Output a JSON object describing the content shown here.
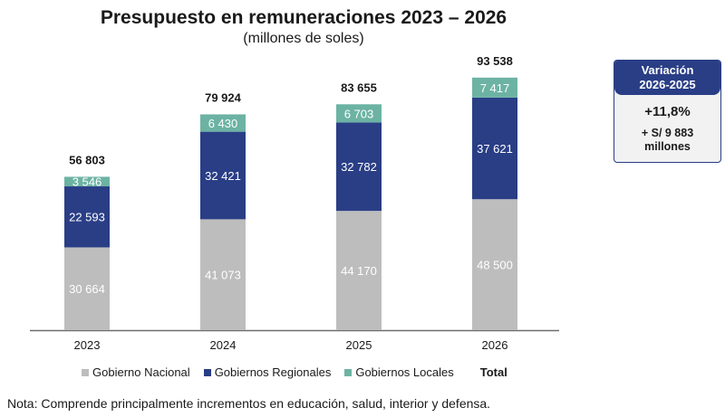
{
  "chart_data": {
    "type": "bar",
    "stacked": true,
    "title": "Presupuesto en remuneraciones 2023 – 2026",
    "subtitle": "(millones de soles)",
    "xlabel": "",
    "ylabel": "",
    "ylim": [
      0,
      100000
    ],
    "grid": false,
    "categories": [
      "2023",
      "2024",
      "2025",
      "2026"
    ],
    "series": [
      {
        "name": "Gobierno Nacional",
        "color": "#bcbdbc",
        "values": [
          30664,
          41073,
          44170,
          48500
        ],
        "labels": [
          "30 664",
          "41 073",
          "44 170",
          "48 500"
        ]
      },
      {
        "name": "Gobiernos Regionales",
        "color": "#2a3e86",
        "values": [
          22593,
          32421,
          32782,
          37621
        ],
        "labels": [
          "22 593",
          "32 421",
          "32 782",
          "37 621"
        ]
      },
      {
        "name": "Gobiernos Locales",
        "color": "#6cb3a3",
        "values": [
          3546,
          6430,
          6703,
          7417
        ],
        "labels": [
          "3 546",
          "6 430",
          "6 703",
          "7 417"
        ]
      }
    ],
    "totals": {
      "name": "Total",
      "values": [
        56803,
        79924,
        83655,
        93538
      ],
      "labels": [
        "56 803",
        "79 924",
        "83 655",
        "93 538"
      ]
    },
    "legend_position": "bottom"
  },
  "variation_box": {
    "header_line1": "Variación",
    "header_line2": "2026-2025",
    "percent": "+11,8%",
    "amount_line1": "+ S/ 9 883",
    "amount_line2": "millones",
    "color": "#2a3e86"
  },
  "legend": {
    "items": [
      {
        "label": "Gobierno Nacional",
        "color": "#bcbdbc"
      },
      {
        "label": "Gobiernos Regionales",
        "color": "#2a3e86"
      },
      {
        "label": "Gobiernos Locales",
        "color": "#6cb3a3"
      }
    ],
    "total_label": "Total"
  },
  "note": "Nota: Comprende principalmente incrementos en educación, salud, interior y defensa."
}
